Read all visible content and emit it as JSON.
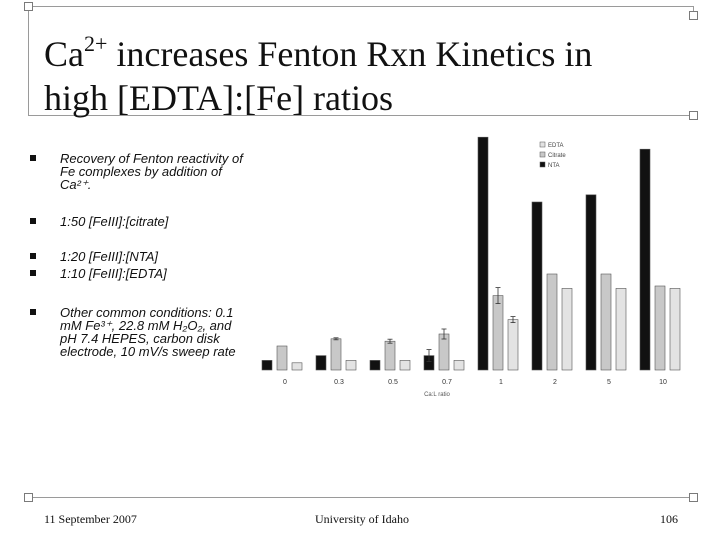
{
  "slide": {
    "title_part1": "Ca",
    "title_sup": "2+",
    "title_part2": " increases Fenton Rxn Kinetics in",
    "title_line2": "high [EDTA]:[Fe] ratios",
    "bullets": [
      "Recovery of Fenton reactivity of Fe complexes by addition of Ca²⁺.",
      "1:50 [FeIII]:[citrate]",
      "1:20 [FeIII]:[NTA]",
      "1:10 [FeIII]:[EDTA]",
      "Other common conditions: 0.1 mM Fe³⁺, 22.8 mM H₂O₂, and pH 7.4 HEPES, carbon disk electrode, 10 mV/s sweep rate"
    ],
    "footer": {
      "date": "11 September 2007",
      "institution": "University of Idaho",
      "page": "106"
    }
  },
  "chart_data": {
    "type": "bar",
    "categories": [
      "0",
      "0.3",
      "0.5",
      "0.7",
      "1",
      "2",
      "5",
      "10"
    ],
    "xlabel": "Ca:L ratio",
    "ylabel": "",
    "ylim": [
      0,
      100
    ],
    "legend_position": "top-right",
    "series": [
      {
        "name": "NTA",
        "color": "#111111",
        "values": [
          4,
          6,
          4,
          6,
          97,
          70,
          73,
          92
        ]
      },
      {
        "name": "Citrate",
        "color": "#c8c8c8",
        "values": [
          10,
          13,
          12,
          15,
          31,
          40,
          40,
          35
        ]
      },
      {
        "name": "EDTA",
        "color": "#e3e3e3",
        "values": [
          3,
          4,
          4,
          4,
          21,
          34,
          34,
          34
        ]
      }
    ],
    "legend_order": [
      "EDTA",
      "Citrate",
      "NTA"
    ]
  }
}
